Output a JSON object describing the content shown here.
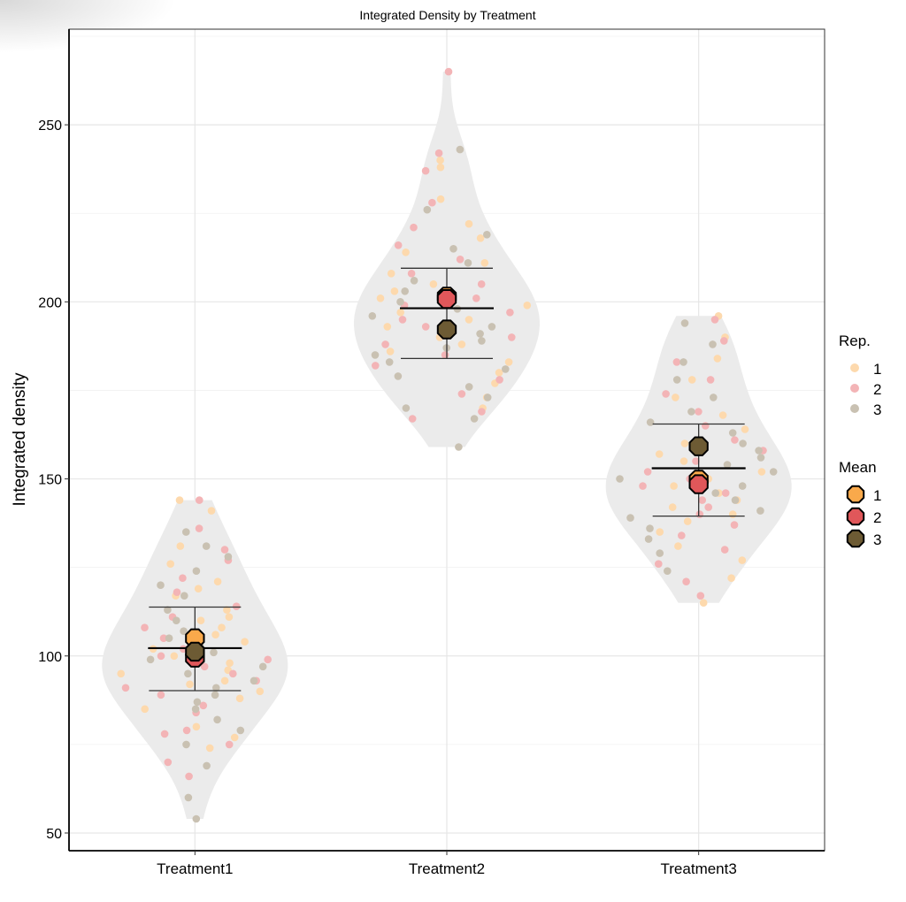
{
  "chart_data": {
    "type": "violin",
    "title": "Integrated Density by Treatment",
    "xlabel": "",
    "ylabel": "Integrated density",
    "categories": [
      "Treatment1",
      "Treatment2",
      "Treatment3"
    ],
    "ylim": [
      45,
      277
    ],
    "yticks": [
      50,
      100,
      150,
      200,
      250
    ],
    "grid": true,
    "legend_position": "right",
    "legends": [
      {
        "title": "Rep.",
        "entries": [
          "1",
          "2",
          "3"
        ],
        "colors": [
          "#fdd9ad",
          "#f3b4b6",
          "#c9c1b2"
        ]
      },
      {
        "title": "Mean",
        "entries": [
          "1",
          "2",
          "3"
        ],
        "colors": [
          "#f9a94b",
          "#e0575a",
          "#6d5b34"
        ]
      }
    ],
    "violin_color": "#ebebeb",
    "points": [
      {
        "category": "Treatment1",
        "rep": "1",
        "values": [
          144,
          141,
          131,
          126,
          121,
          119,
          117,
          113,
          111,
          110,
          108,
          106,
          104,
          102,
          100,
          98,
          96,
          95,
          93,
          92,
          90,
          88,
          85,
          80,
          77,
          74
        ]
      },
      {
        "category": "Treatment1",
        "rep": "2",
        "values": [
          144,
          136,
          130,
          127,
          122,
          118,
          114,
          111,
          108,
          105,
          102,
          100,
          99,
          97,
          95,
          93,
          91,
          89,
          86,
          84,
          79,
          78,
          75,
          70,
          66
        ]
      },
      {
        "category": "Treatment1",
        "rep": "3",
        "values": [
          135,
          131,
          128,
          124,
          120,
          117,
          113,
          110,
          107,
          105,
          103,
          101,
          99,
          97,
          95,
          93,
          91,
          89,
          87,
          85,
          82,
          79,
          75,
          69,
          60,
          54
        ]
      },
      {
        "category": "Treatment2",
        "rep": "1",
        "values": [
          238,
          240,
          229,
          222,
          218,
          214,
          211,
          208,
          205,
          203,
          201,
          199,
          197,
          195,
          193,
          190,
          188,
          186,
          183,
          180,
          177,
          173,
          170
        ]
      },
      {
        "category": "Treatment2",
        "rep": "2",
        "values": [
          265,
          242,
          237,
          228,
          221,
          216,
          212,
          208,
          205,
          203,
          201,
          199,
          197,
          195,
          193,
          190,
          188,
          185,
          182,
          178,
          174,
          169,
          167
        ]
      },
      {
        "category": "Treatment2",
        "rep": "3",
        "values": [
          243,
          226,
          219,
          215,
          211,
          206,
          203,
          200,
          198,
          196,
          193,
          191,
          189,
          187,
          185,
          183,
          181,
          179,
          176,
          173,
          170,
          167,
          159
        ]
      },
      {
        "category": "Treatment3",
        "rep": "1",
        "values": [
          196,
          190,
          184,
          178,
          173,
          168,
          164,
          160,
          157,
          155,
          152,
          150,
          148,
          146,
          144,
          142,
          140,
          138,
          135,
          131,
          127,
          122,
          115
        ]
      },
      {
        "category": "Treatment3",
        "rep": "2",
        "values": [
          195,
          189,
          183,
          178,
          174,
          169,
          165,
          161,
          158,
          155,
          152,
          150,
          148,
          146,
          144,
          142,
          140,
          137,
          134,
          130,
          126,
          121,
          117
        ]
      },
      {
        "category": "Treatment3",
        "rep": "3",
        "values": [
          194,
          188,
          183,
          178,
          173,
          169,
          166,
          163,
          160,
          158,
          156,
          154,
          152,
          150,
          148,
          146,
          144,
          141,
          139,
          136,
          133,
          129,
          124
        ]
      }
    ],
    "rep_means": [
      {
        "category": "Treatment1",
        "values": [
          105,
          99.5,
          101.2
        ]
      },
      {
        "category": "Treatment2",
        "values": [
          201.5,
          200.8,
          192.2
        ]
      },
      {
        "category": "Treatment3",
        "values": [
          149.8,
          148.5,
          159.2
        ]
      }
    ],
    "summary": [
      {
        "category": "Treatment1",
        "mean": 102.2,
        "lower": 90.2,
        "upper": 113.8
      },
      {
        "category": "Treatment2",
        "mean": 198.2,
        "lower": 184,
        "upper": 209.5
      },
      {
        "category": "Treatment3",
        "mean": 153,
        "lower": 139.5,
        "upper": 165.5
      }
    ]
  }
}
